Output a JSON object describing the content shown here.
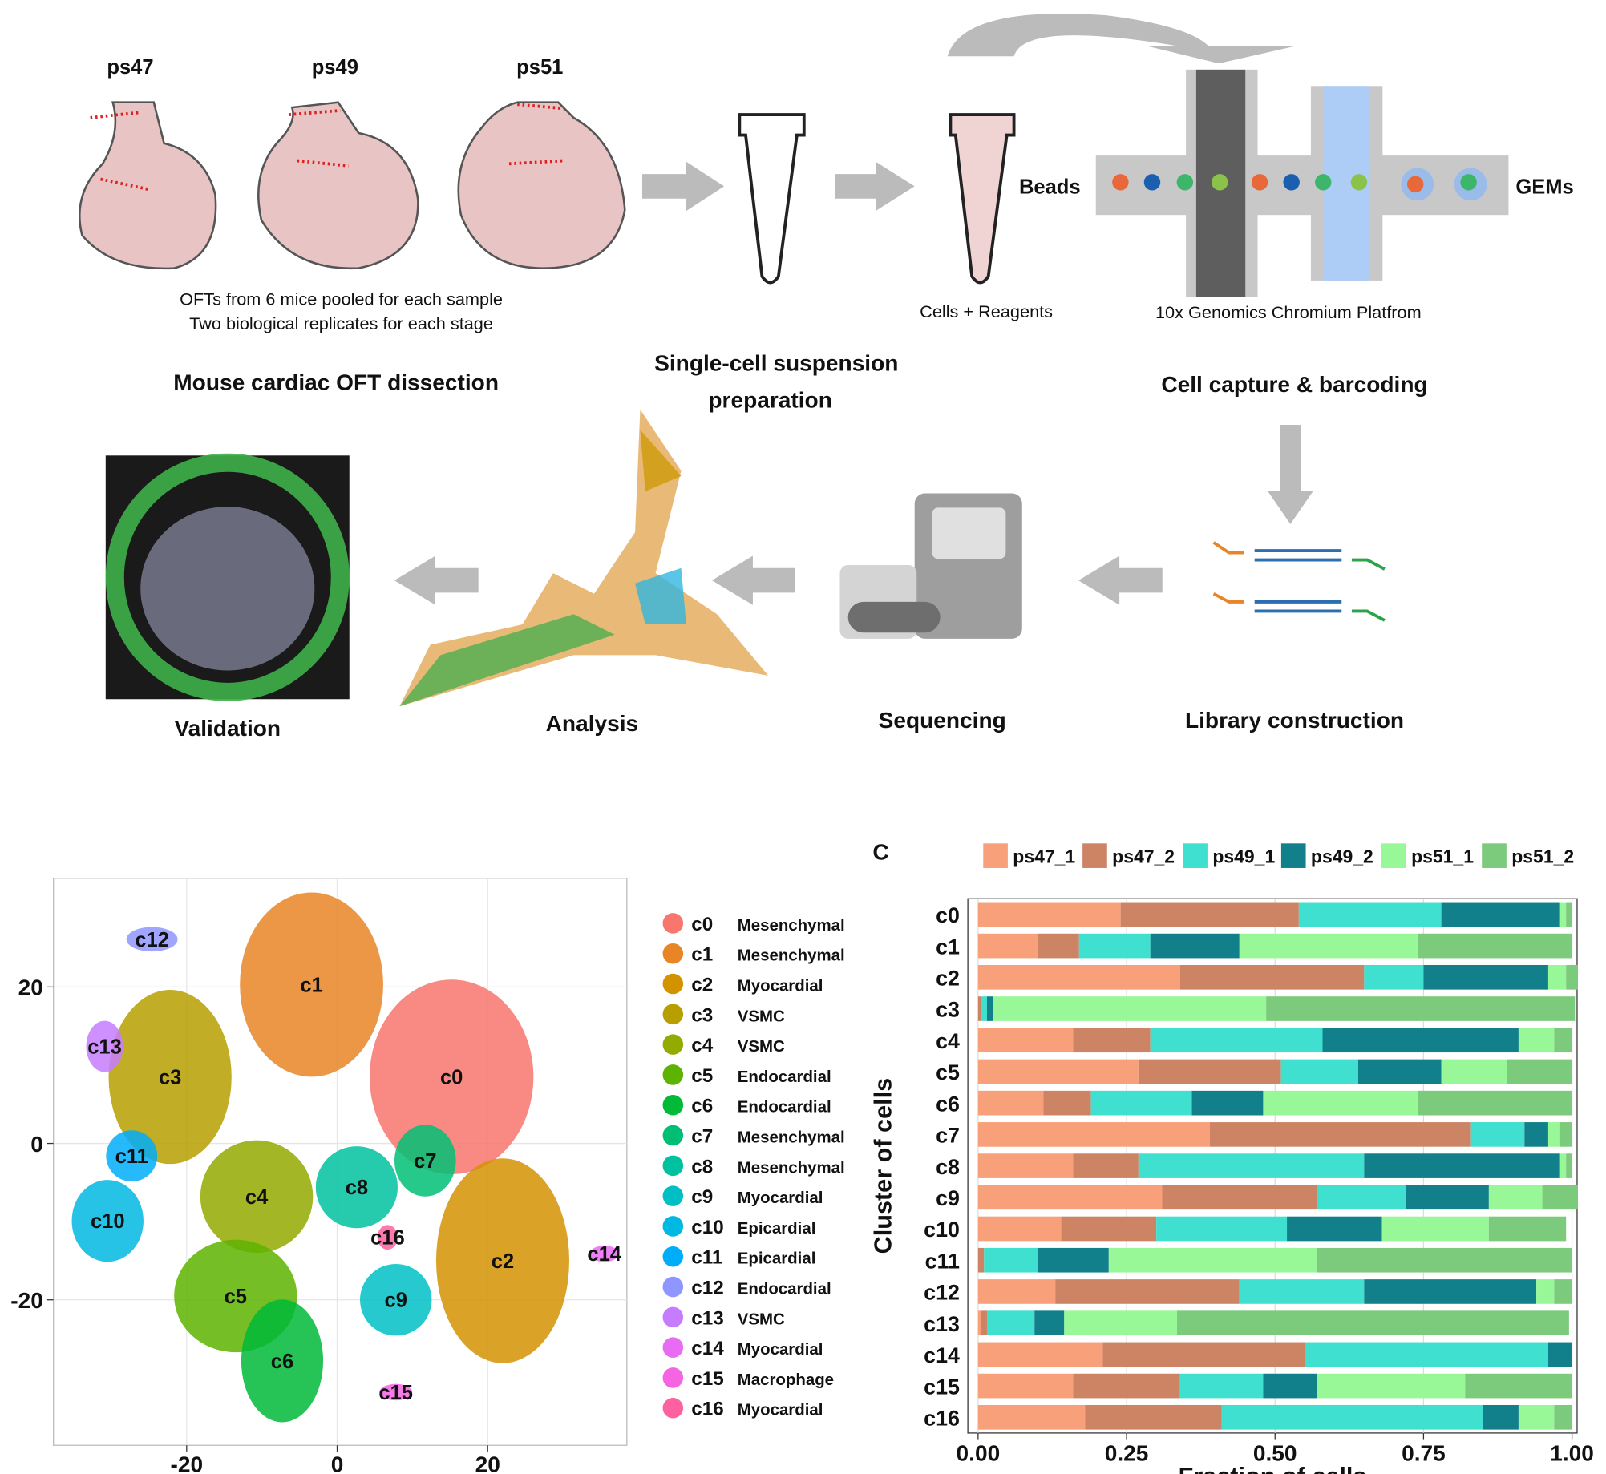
{
  "workflow": {
    "stages": [
      "ps47",
      "ps49",
      "ps51"
    ],
    "note_1": "OFTs from 6 mice pooled for each sample",
    "note_2": "Two biological replicates for each stage",
    "dissection": "Mouse cardiac OFT dissection",
    "suspension_1": "Single-cell suspension",
    "suspension_2": "preparation",
    "beads": "Beads",
    "cells": "Cells + Reagents",
    "gems": "GEMs",
    "platform": "10x Genomics Chromium Platfrom",
    "capture": "Cell capture & barcoding",
    "library": "Library construction",
    "sequencing": "Sequencing",
    "analysis": "Analysis",
    "validation": "Validation"
  },
  "chart_data": [
    {
      "type": "scatter",
      "xlim": [
        -37.7,
        38.5
      ],
      "ylim": [
        -38.6,
        33.9
      ],
      "xticks": [
        -20,
        0,
        20
      ],
      "yticks": [
        -20,
        0,
        20
      ],
      "grid": true,
      "clusters": [
        {
          "name": "c0",
          "cell_type": "Mesenchymal",
          "color": "#f8766d",
          "x": 15.2,
          "y": 8.5
        },
        {
          "name": "c1",
          "cell_type": "Mesenchymal",
          "color": "#e88526",
          "x": -3.4,
          "y": 20.3
        },
        {
          "name": "c2",
          "cell_type": "Myocardial",
          "color": "#d39200",
          "x": 22,
          "y": -15
        },
        {
          "name": "c3",
          "cell_type": "VSMC",
          "color": "#b79f00",
          "x": -22.2,
          "y": 8.5
        },
        {
          "name": "c4",
          "cell_type": "VSMC",
          "color": "#93aa00",
          "x": -10.7,
          "y": -6.8
        },
        {
          "name": "c5",
          "cell_type": "Endocardial",
          "color": "#5eb300",
          "x": -13.5,
          "y": -19.5
        },
        {
          "name": "c6",
          "cell_type": "Endocardial",
          "color": "#00ba38",
          "x": -7.3,
          "y": -27.8
        },
        {
          "name": "c7",
          "cell_type": "Mesenchymal",
          "color": "#00bf74",
          "x": 11.7,
          "y": -2.2
        },
        {
          "name": "c8",
          "cell_type": "Mesenchymal",
          "color": "#00c19f",
          "x": 2.6,
          "y": -5.6
        },
        {
          "name": "c9",
          "cell_type": "Myocardial",
          "color": "#00bfc4",
          "x": 7.8,
          "y": -20
        },
        {
          "name": "c10",
          "cell_type": "Epicardial",
          "color": "#00b9e3",
          "x": -30.5,
          "y": -9.9
        },
        {
          "name": "c11",
          "cell_type": "Epicardial",
          "color": "#00adfa",
          "x": -27.3,
          "y": -1.6
        },
        {
          "name": "c12",
          "cell_type": "Endocardial",
          "color": "#8f96ff",
          "x": -24.6,
          "y": 26.1
        },
        {
          "name": "c13",
          "cell_type": "VSMC",
          "color": "#c77cff",
          "x": -30.9,
          "y": 12.4
        },
        {
          "name": "c14",
          "cell_type": "Myocardial",
          "color": "#e76bf3",
          "x": 35.5,
          "y": -14.1
        },
        {
          "name": "c15",
          "cell_type": "Macrophage",
          "color": "#f564e3",
          "x": 7.8,
          "y": -31.8
        },
        {
          "name": "c16",
          "cell_type": "Myocardial",
          "color": "#ff61a0",
          "x": 6.7,
          "y": -12
        }
      ]
    },
    {
      "type": "bar",
      "orientation": "horizontal",
      "stacked": true,
      "panel": "C",
      "xlabel": "Fraction of cells",
      "ylabel": "Cluster of cells",
      "xlim": [
        0,
        1
      ],
      "xticks": [
        {
          "value": 0,
          "label": "0.00"
        },
        {
          "value": 0.25,
          "label": "0.25"
        },
        {
          "value": 0.5,
          "label": "0.50"
        },
        {
          "value": 0.75,
          "label": "0.75"
        },
        {
          "value": 1,
          "label": "1.00"
        }
      ],
      "categories": [
        "c0",
        "c1",
        "c2",
        "c3",
        "c4",
        "c5",
        "c6",
        "c7",
        "c8",
        "c9",
        "c10",
        "c11",
        "c12",
        "c13",
        "c14",
        "c15",
        "c16"
      ],
      "series": [
        {
          "name": "ps47_1",
          "color": "#f7a07a",
          "values": [
            0.24,
            0.1,
            0.34,
            0.0,
            0.16,
            0.27,
            0.11,
            0.39,
            0.16,
            0.31,
            0.14,
            0.0,
            0.13,
            0.005,
            0.21,
            0.16,
            0.18
          ]
        },
        {
          "name": "ps47_2",
          "color": "#cd8465",
          "values": [
            0.3,
            0.07,
            0.31,
            0.005,
            0.13,
            0.24,
            0.08,
            0.44,
            0.11,
            0.26,
            0.16,
            0.01,
            0.31,
            0.01,
            0.34,
            0.18,
            0.23
          ]
        },
        {
          "name": "ps49_1",
          "color": "#40e0d0",
          "values": [
            0.24,
            0.12,
            0.1,
            0.01,
            0.29,
            0.13,
            0.17,
            0.09,
            0.38,
            0.15,
            0.22,
            0.09,
            0.21,
            0.08,
            0.41,
            0.14,
            0.44
          ]
        },
        {
          "name": "ps49_2",
          "color": "#12808a",
          "values": [
            0.2,
            0.15,
            0.21,
            0.01,
            0.33,
            0.14,
            0.12,
            0.04,
            0.33,
            0.14,
            0.16,
            0.12,
            0.29,
            0.05,
            0.04,
            0.09,
            0.06
          ]
        },
        {
          "name": "ps51_1",
          "color": "#98f898",
          "values": [
            0.01,
            0.3,
            0.03,
            0.46,
            0.06,
            0.11,
            0.26,
            0.02,
            0.01,
            0.09,
            0.18,
            0.35,
            0.03,
            0.19,
            0,
            0.25,
            0.06
          ]
        },
        {
          "name": "ps51_2",
          "color": "#7cca7c",
          "values": [
            0.01,
            0.26,
            0.02,
            0.52,
            0.03,
            0.11,
            0.26,
            0.02,
            0.01,
            0.06,
            0.13,
            0.43,
            0.03,
            0.66,
            0,
            0.18,
            0.03
          ]
        }
      ]
    }
  ]
}
